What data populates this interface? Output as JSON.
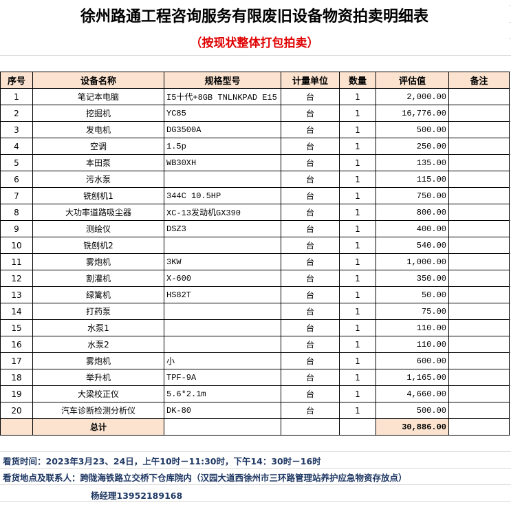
{
  "title": "徐州路通工程咨询服务有限废旧设备物资拍卖明细表",
  "subtitle": "（按现状整体打包拍卖）",
  "table": {
    "header": [
      "序号",
      "设备名称",
      "规格型号",
      "计量单位",
      "数量",
      "评估值",
      "备注"
    ],
    "rows": [
      [
        "1",
        "笔记本电脑",
        "I5十代+8GB TNLNKPAD E15",
        "台",
        "1",
        "2,000.00"
      ],
      [
        "2",
        "挖掘机",
        "YC85",
        "台",
        "1",
        "16,776.00"
      ],
      [
        "3",
        "发电机",
        "DG3500A",
        "台",
        "1",
        "500.00"
      ],
      [
        "4",
        "空调",
        "1.5p",
        "台",
        "1",
        "250.00"
      ],
      [
        "5",
        "本田泵",
        "WB30XH",
        "台",
        "1",
        "135.00"
      ],
      [
        "6",
        "污水泵",
        null,
        "台",
        "1",
        "115.00"
      ],
      [
        "7",
        "铣刨机1",
        "344C 10.5HP",
        "台",
        "1",
        "750.00"
      ],
      [
        "8",
        "大功率道路吸尘器",
        "XC-13发动机GX390",
        "台",
        "1",
        "800.00"
      ],
      [
        "9",
        "测绘仪",
        "DSZ3",
        "台",
        "1",
        "400.00"
      ],
      [
        "10",
        "铣刨机2",
        null,
        "台",
        "1",
        "540.00"
      ],
      [
        "11",
        "雾炮机",
        "3KW",
        "台",
        "1",
        "1,000.00"
      ],
      [
        "12",
        "割灌机",
        "X-600",
        "台",
        "1",
        "350.00"
      ],
      [
        "13",
        "绿篱机",
        "HS82T",
        "台",
        "1",
        "50.00"
      ],
      [
        "14",
        "打药泵",
        null,
        "台",
        "1",
        "75.00"
      ],
      [
        "15",
        "水泵1",
        null,
        "台",
        "1",
        "110.00"
      ],
      [
        "16",
        "水泵2",
        null,
        "台",
        "1",
        "110.00"
      ],
      [
        "17",
        "雾炮机",
        "小",
        "台",
        "1",
        "600.00"
      ],
      [
        "18",
        "举升机",
        "TPF-9A",
        "台",
        "1",
        "1,165.00"
      ],
      [
        "19",
        "大梁校正仪",
        "5.6*2.1m",
        "台",
        "1",
        "4,660.00"
      ],
      [
        "20",
        "汽车诊断检测分析仪",
        "DK-80",
        "台",
        "1",
        "500.00"
      ]
    ],
    "total": {
      "label": "总计",
      "value": "30,886.00"
    }
  },
  "notes": [
    "看货时间：2023年3月23、24日，上午10时－11:30时，下午14：30时－16时",
    "看货地点及联系人：跨陇海铁路立交桥下仓库院内（汉园大道西徐州市三环路管理站养护应急物资存放点）",
    "杨经理13952189168"
  ]
}
